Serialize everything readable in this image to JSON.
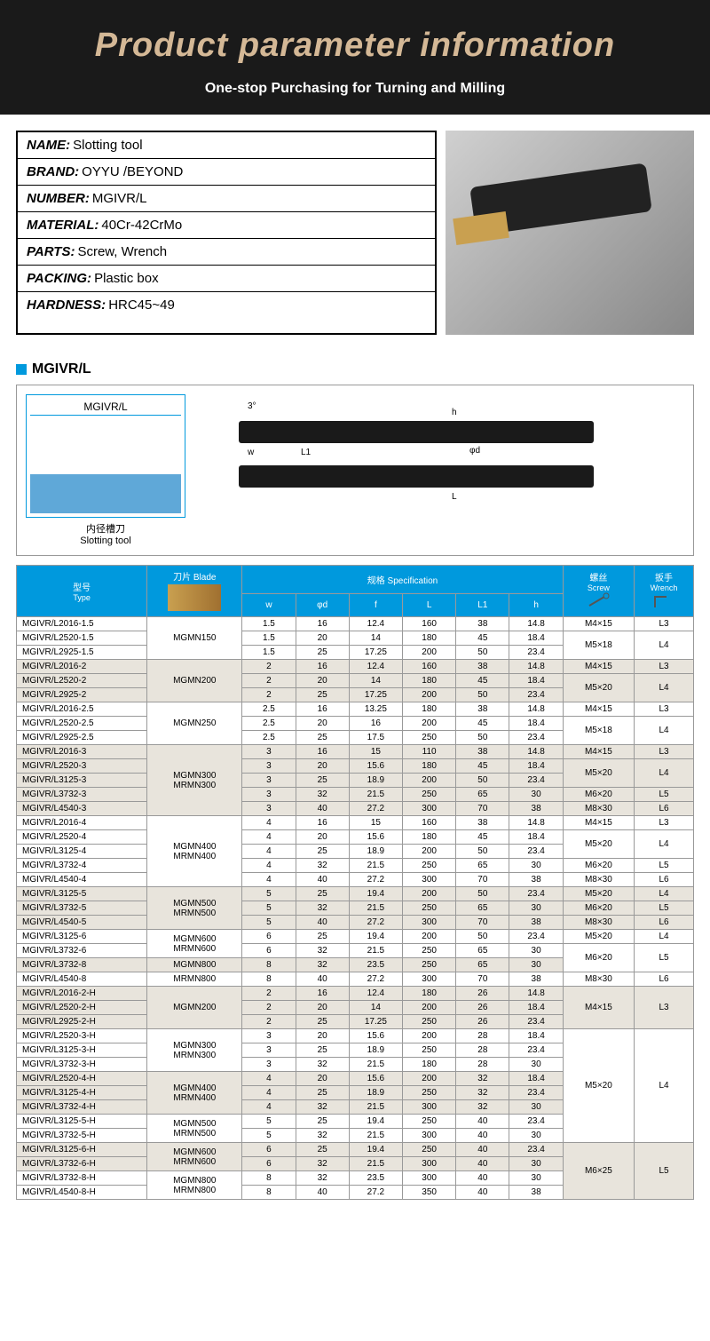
{
  "hero": {
    "title": "Product parameter information",
    "sub": "One-stop Purchasing for Turning and Milling"
  },
  "info": [
    {
      "label": "NAME:",
      "val": "Slotting tool"
    },
    {
      "label": "BRAND:",
      "val": "OYYU /BEYOND"
    },
    {
      "label": "NUMBER:",
      "val": "MGIVR/L"
    },
    {
      "label": "MATERIAL:",
      "val": "40Cr-42CrMo"
    },
    {
      "label": "PARTS:",
      "val": "Screw, Wrench"
    },
    {
      "label": "PACKING:",
      "val": "Plastic  box"
    },
    {
      "label": "HARDNESS:",
      "val": "HRC45~49"
    }
  ],
  "diag": {
    "title": "MGIVR/L",
    "box_label": "MGIVR/L",
    "cn": "内径槽刀",
    "en": "Slotting tool",
    "dims": [
      "3°",
      "h",
      "φd",
      "w",
      "L1",
      "L"
    ]
  },
  "headers": {
    "type": {
      "cn": "型号",
      "en": "Type"
    },
    "blade": {
      "cn": "刀片",
      "en": "Blade"
    },
    "spec": {
      "cn": "规格",
      "en": "Specification"
    },
    "screw": {
      "cn": "螺丝",
      "en": "Screw"
    },
    "wrench": {
      "cn": "扳手",
      "en": "Wrench"
    },
    "cols": [
      "w",
      "φd",
      "f",
      "L",
      "L1",
      "h"
    ]
  },
  "groups": [
    {
      "blade": "MGMN150",
      "rows": [
        {
          "t": "MGIVR/L2016-1.5",
          "v": [
            "1.5",
            "16",
            "12.4",
            "160",
            "38",
            "14.8"
          ],
          "s": "M4×15",
          "w": "L3"
        },
        {
          "t": "MGIVR/L2520-1.5",
          "v": [
            "1.5",
            "20",
            "14",
            "180",
            "45",
            "18.4"
          ],
          "s": "M5×18",
          "w": "L4",
          "srs": 2,
          "wrs": 2
        },
        {
          "t": "MGIVR/L2925-1.5",
          "v": [
            "1.5",
            "25",
            "17.25",
            "200",
            "50",
            "23.4"
          ]
        }
      ]
    },
    {
      "blade": "MGMN200",
      "alt": true,
      "rows": [
        {
          "t": "MGIVR/L2016-2",
          "v": [
            "2",
            "16",
            "12.4",
            "160",
            "38",
            "14.8"
          ],
          "s": "M4×15",
          "w": "L3"
        },
        {
          "t": "MGIVR/L2520-2",
          "v": [
            "2",
            "20",
            "14",
            "180",
            "45",
            "18.4"
          ],
          "s": "M5×20",
          "w": "L4",
          "srs": 2,
          "wrs": 2
        },
        {
          "t": "MGIVR/L2925-2",
          "v": [
            "2",
            "25",
            "17.25",
            "200",
            "50",
            "23.4"
          ]
        }
      ]
    },
    {
      "blade": "MGMN250",
      "rows": [
        {
          "t": "MGIVR/L2016-2.5",
          "v": [
            "2.5",
            "16",
            "13.25",
            "180",
            "38",
            "14.8"
          ],
          "s": "M4×15",
          "w": "L3"
        },
        {
          "t": "MGIVR/L2520-2.5",
          "v": [
            "2.5",
            "20",
            "16",
            "200",
            "45",
            "18.4"
          ],
          "s": "M5×18",
          "w": "L4",
          "srs": 2,
          "wrs": 2
        },
        {
          "t": "MGIVR/L2925-2.5",
          "v": [
            "2.5",
            "25",
            "17.5",
            "250",
            "50",
            "23.4"
          ]
        }
      ]
    },
    {
      "blade": "MGMN300\nMRMN300",
      "alt": true,
      "rows": [
        {
          "t": "MGIVR/L2016-3",
          "v": [
            "3",
            "16",
            "15",
            "110",
            "38",
            "14.8"
          ],
          "s": "M4×15",
          "w": "L3"
        },
        {
          "t": "MGIVR/L2520-3",
          "v": [
            "3",
            "20",
            "15.6",
            "180",
            "45",
            "18.4"
          ],
          "s": "M5×20",
          "w": "L4",
          "srs": 2,
          "wrs": 2
        },
        {
          "t": "MGIVR/L3125-3",
          "v": [
            "3",
            "25",
            "18.9",
            "200",
            "50",
            "23.4"
          ]
        },
        {
          "t": "MGIVR/L3732-3",
          "v": [
            "3",
            "32",
            "21.5",
            "250",
            "65",
            "30"
          ],
          "s": "M6×20",
          "w": "L5"
        },
        {
          "t": "MGIVR/L4540-3",
          "v": [
            "3",
            "40",
            "27.2",
            "300",
            "70",
            "38"
          ],
          "s": "M8×30",
          "w": "L6"
        }
      ]
    },
    {
      "blade": "MGMN400\nMRMN400",
      "rows": [
        {
          "t": "MGIVR/L2016-4",
          "v": [
            "4",
            "16",
            "15",
            "160",
            "38",
            "14.8"
          ],
          "s": "M4×15",
          "w": "L3"
        },
        {
          "t": "MGIVR/L2520-4",
          "v": [
            "4",
            "20",
            "15.6",
            "180",
            "45",
            "18.4"
          ],
          "s": "M5×20",
          "w": "L4",
          "srs": 2,
          "wrs": 2
        },
        {
          "t": "MGIVR/L3125-4",
          "v": [
            "4",
            "25",
            "18.9",
            "200",
            "50",
            "23.4"
          ]
        },
        {
          "t": "MGIVR/L3732-4",
          "v": [
            "4",
            "32",
            "21.5",
            "250",
            "65",
            "30"
          ],
          "s": "M6×20",
          "w": "L5"
        },
        {
          "t": "MGIVR/L4540-4",
          "v": [
            "4",
            "40",
            "27.2",
            "300",
            "70",
            "38"
          ],
          "s": "M8×30",
          "w": "L6"
        }
      ]
    },
    {
      "blade": "MGMN500\nMRMN500",
      "alt": true,
      "rows": [
        {
          "t": "MGIVR/L3125-5",
          "v": [
            "5",
            "25",
            "19.4",
            "200",
            "50",
            "23.4"
          ],
          "s": "M5×20",
          "w": "L4"
        },
        {
          "t": "MGIVR/L3732-5",
          "v": [
            "5",
            "32",
            "21.5",
            "250",
            "65",
            "30"
          ],
          "s": "M6×20",
          "w": "L5"
        },
        {
          "t": "MGIVR/L4540-5",
          "v": [
            "5",
            "40",
            "27.2",
            "300",
            "70",
            "38"
          ],
          "s": "M8×30",
          "w": "L6"
        }
      ]
    },
    {
      "blade": "MGMN600\nMRMN600",
      "rows": [
        {
          "t": "MGIVR/L3125-6",
          "v": [
            "6",
            "25",
            "19.4",
            "200",
            "50",
            "23.4"
          ],
          "s": "M5×20",
          "w": "L4"
        },
        {
          "t": "MGIVR/L3732-6",
          "v": [
            "6",
            "32",
            "21.5",
            "250",
            "65",
            "30"
          ],
          "s": "M6×20",
          "w": "L5",
          "srs": 2,
          "wrs": 2
        }
      ]
    },
    {
      "blade": "MGMN800",
      "alt": true,
      "rows": [
        {
          "t": "MGIVR/L3732-8",
          "v": [
            "8",
            "32",
            "23.5",
            "250",
            "65",
            "30"
          ]
        }
      ]
    },
    {
      "blade": "MRMN800",
      "rows": [
        {
          "t": "MGIVR/L4540-8",
          "v": [
            "8",
            "40",
            "27.2",
            "300",
            "70",
            "38"
          ],
          "s": "M8×30",
          "w": "L6"
        }
      ]
    },
    {
      "blade": "MGMN200",
      "alt": true,
      "rows": [
        {
          "t": "MGIVR/L2016-2-H",
          "v": [
            "2",
            "16",
            "12.4",
            "180",
            "26",
            "14.8"
          ],
          "s": "M4×15",
          "w": "L3",
          "srs": 3,
          "wrs": 3
        },
        {
          "t": "MGIVR/L2520-2-H",
          "v": [
            "2",
            "20",
            "14",
            "200",
            "26",
            "18.4"
          ]
        },
        {
          "t": "MGIVR/L2925-2-H",
          "v": [
            "2",
            "25",
            "17.25",
            "250",
            "26",
            "23.4"
          ]
        }
      ]
    },
    {
      "blade": "MGMN300\nMRMN300",
      "rows": [
        {
          "t": "MGIVR/L2520-3-H",
          "v": [
            "3",
            "20",
            "15.6",
            "200",
            "28",
            "18.4"
          ],
          "s": "M5×20",
          "w": "L4",
          "srs": 8,
          "wrs": 8
        },
        {
          "t": "MGIVR/L3125-3-H",
          "v": [
            "3",
            "25",
            "18.9",
            "250",
            "28",
            "23.4"
          ]
        },
        {
          "t": "MGIVR/L3732-3-H",
          "v": [
            "3",
            "32",
            "21.5",
            "180",
            "28",
            "30"
          ]
        }
      ]
    },
    {
      "blade": "MGMN400\nMRMN400",
      "alt": true,
      "rows": [
        {
          "t": "MGIVR/L2520-4-H",
          "v": [
            "4",
            "20",
            "15.6",
            "200",
            "32",
            "18.4"
          ]
        },
        {
          "t": "MGIVR/L3125-4-H",
          "v": [
            "4",
            "25",
            "18.9",
            "250",
            "32",
            "23.4"
          ]
        },
        {
          "t": "MGIVR/L3732-4-H",
          "v": [
            "4",
            "32",
            "21.5",
            "300",
            "32",
            "30"
          ]
        }
      ]
    },
    {
      "blade": "MGMN500\nMRMN500",
      "rows": [
        {
          "t": "MGIVR/L3125-5-H",
          "v": [
            "5",
            "25",
            "19.4",
            "250",
            "40",
            "23.4"
          ]
        },
        {
          "t": "MGIVR/L3732-5-H",
          "v": [
            "5",
            "32",
            "21.5",
            "300",
            "40",
            "30"
          ]
        }
      ]
    },
    {
      "blade": "MGMN600\nMRMN600",
      "alt": true,
      "rows": [
        {
          "t": "MGIVR/L3125-6-H",
          "v": [
            "6",
            "25",
            "19.4",
            "250",
            "40",
            "23.4"
          ],
          "s": "M6×25",
          "w": "L5",
          "srs": 4,
          "wrs": 4
        },
        {
          "t": "MGIVR/L3732-6-H",
          "v": [
            "6",
            "32",
            "21.5",
            "300",
            "40",
            "30"
          ]
        }
      ]
    },
    {
      "blade": "MGMN800\nMRMN800",
      "rows": [
        {
          "t": "MGIVR/L3732-8-H",
          "v": [
            "8",
            "32",
            "23.5",
            "300",
            "40",
            "30"
          ]
        },
        {
          "t": "MGIVR/L4540-8-H",
          "v": [
            "8",
            "40",
            "27.2",
            "350",
            "40",
            "38"
          ]
        }
      ]
    }
  ],
  "colors": {
    "header": "#0099dd",
    "alt": "#e8e4dc",
    "hero_bg": "#1a1a1a",
    "hero_title": "#d4b896"
  }
}
